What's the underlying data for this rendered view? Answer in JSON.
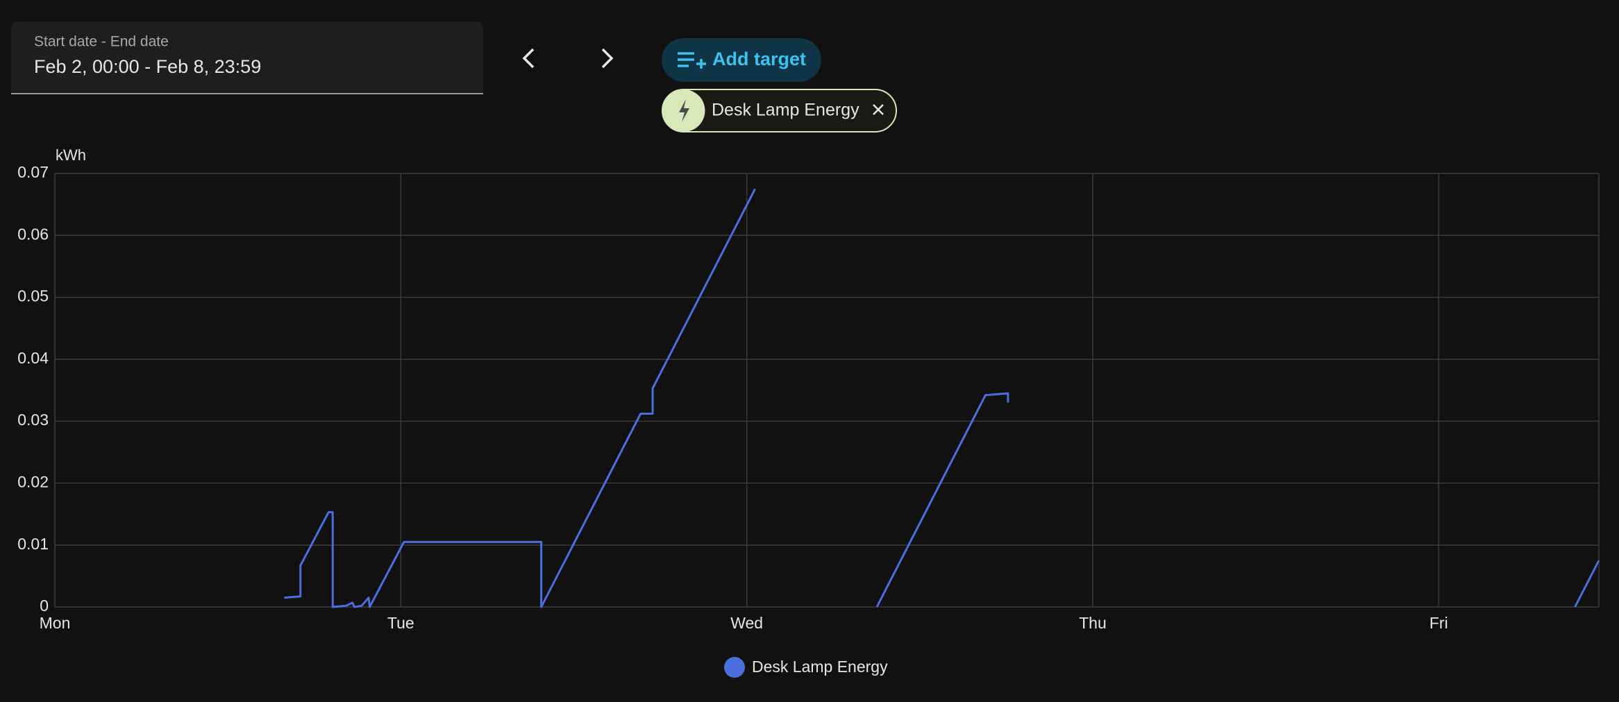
{
  "date_picker": {
    "label": "Start date - End date",
    "value": "Feb 2, 00:00 - Feb 8, 23:59"
  },
  "add_target": {
    "label": "Add target"
  },
  "target_chip": {
    "label": "Desk Lamp Energy"
  },
  "chart_data": {
    "type": "line",
    "y_label": "kWh",
    "x": [
      0.663,
      0.71,
      0.71,
      0.791,
      0.803,
      0.803,
      0.842,
      0.86,
      0.866,
      0.887,
      0.907,
      0.91,
      1.009,
      1.406,
      1.406,
      1.693,
      1.728,
      1.728,
      2.024,
      null,
      2.376,
      2.69,
      2.755,
      2.755,
      null,
      4.394,
      4.463
    ],
    "series": [
      {
        "name": "Desk Lamp Energy",
        "color": "#4a6fdc",
        "values": [
          0.0015,
          0.0017,
          0.0067,
          0.0153,
          0.0153,
          0,
          0.0002,
          0.0007,
          0,
          0.0002,
          0.0015,
          0,
          0.0105,
          0.0105,
          0,
          0.0312,
          0.0312,
          0.0353,
          0.0675,
          null,
          0,
          0.0342,
          0.0345,
          0.033,
          null,
          0,
          0.0075
        ]
      }
    ],
    "xlim": [
      0,
      4.463
    ],
    "xticks": [
      {
        "value": 0,
        "label": "Mon"
      },
      {
        "value": 1,
        "label": "Tue"
      },
      {
        "value": 2,
        "label": "Wed"
      },
      {
        "value": 3,
        "label": "Thu"
      },
      {
        "value": 4,
        "label": "Fri"
      }
    ],
    "ylim": [
      0,
      0.07
    ],
    "yticks": [
      0,
      0.01,
      0.02,
      0.03,
      0.04,
      0.05,
      0.06,
      0.07
    ],
    "grid": true
  }
}
